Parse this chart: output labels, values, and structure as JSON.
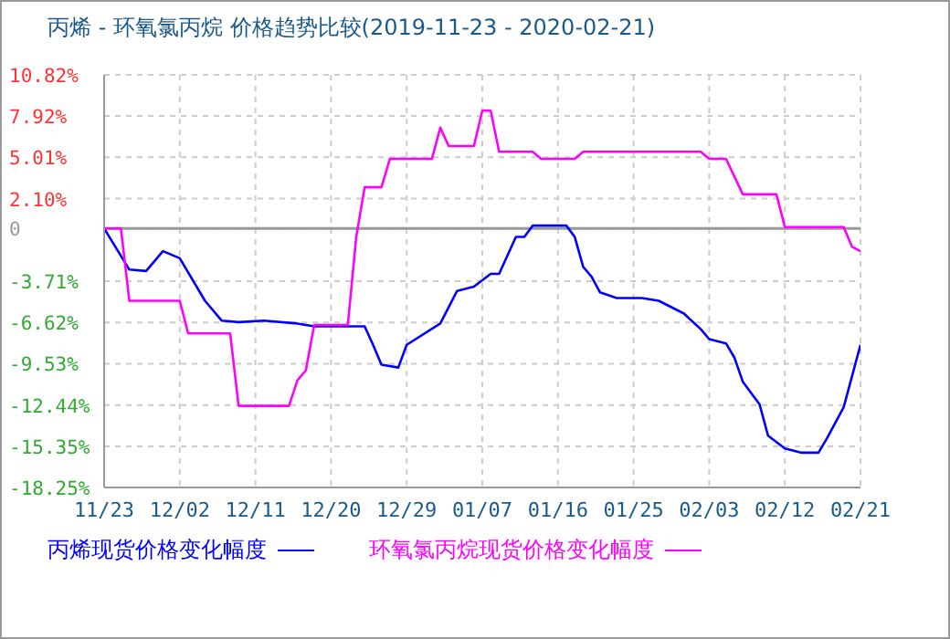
{
  "chart_data": {
    "type": "line",
    "title": "丙烯 - 环氧氯丙烷 价格趋势比较(2019-11-23 - 2020-02-21)",
    "series": [
      {
        "name": "丙烯现货价格变化幅度",
        "color": "#0000ff",
        "x": [
          "2019-11-23",
          "2019-11-26",
          "2019-11-28",
          "2019-11-30",
          "2019-12-02",
          "2019-12-05",
          "2019-12-07",
          "2019-12-09",
          "2019-12-12",
          "2019-12-16",
          "2019-12-18",
          "2019-12-24",
          "2019-12-25",
          "2019-12-26",
          "2019-12-28",
          "2019-12-29",
          "2020-01-02",
          "2020-01-04",
          "2020-01-06",
          "2020-01-08",
          "2020-01-09",
          "2020-01-11",
          "2020-01-12",
          "2020-01-13",
          "2020-01-17",
          "2020-01-18",
          "2020-01-19",
          "2020-01-20",
          "2020-01-21",
          "2020-01-23",
          "2020-01-26",
          "2020-01-28",
          "2020-01-31",
          "2020-02-02",
          "2020-02-03",
          "2020-02-05",
          "2020-02-06",
          "2020-02-07",
          "2020-02-09",
          "2020-02-10",
          "2020-02-12",
          "2020-02-14",
          "2020-02-16",
          "2020-02-17",
          "2020-02-19",
          "2020-02-21"
        ],
        "values": [
          0,
          -2.9,
          -3.0,
          -1.6,
          -2.1,
          -5.1,
          -6.5,
          -6.6,
          -6.5,
          -6.7,
          -6.9,
          -6.9,
          -8.2,
          -9.6,
          -9.8,
          -8.2,
          -6.7,
          -4.4,
          -4.1,
          -3.2,
          -3.2,
          -0.6,
          -0.6,
          0.2,
          0.2,
          -0.6,
          -2.7,
          -3.4,
          -4.5,
          -4.9,
          -4.9,
          -5.1,
          -6.0,
          -7.1,
          -7.8,
          -8.1,
          -9.1,
          -10.8,
          -12.4,
          -14.6,
          -15.5,
          -15.8,
          -15.8,
          -14.8,
          -12.6,
          -8.2
        ]
      },
      {
        "name": "环氧氯丙烷现货价格变化幅度",
        "color": "#ff00ff",
        "x": [
          "2019-11-23",
          "2019-11-25",
          "2019-11-26",
          "2019-12-02",
          "2019-12-03",
          "2019-12-08",
          "2019-12-09",
          "2019-12-15",
          "2019-12-16",
          "2019-12-17",
          "2019-12-18",
          "2019-12-22",
          "2019-12-23",
          "2019-12-24",
          "2019-12-26",
          "2019-12-27",
          "2020-01-01",
          "2020-01-02",
          "2020-01-03",
          "2020-01-06",
          "2020-01-07",
          "2020-01-08",
          "2020-01-09",
          "2020-01-13",
          "2020-01-14",
          "2020-01-18",
          "2020-01-19",
          "2020-02-02",
          "2020-02-03",
          "2020-02-05",
          "2020-02-07",
          "2020-02-11",
          "2020-02-12",
          "2020-02-19",
          "2020-02-20",
          "2020-02-21"
        ],
        "values": [
          0,
          0,
          -5.1,
          -5.1,
          -7.4,
          -7.4,
          -12.5,
          -12.5,
          -10.7,
          -10.0,
          -6.8,
          -6.8,
          -0.6,
          2.9,
          2.9,
          4.9,
          4.9,
          7.1,
          5.8,
          5.8,
          8.3,
          8.3,
          5.4,
          5.4,
          4.9,
          4.9,
          5.4,
          5.4,
          4.9,
          4.9,
          2.4,
          2.4,
          0.1,
          0.1,
          -1.3,
          -1.6
        ]
      }
    ],
    "xlim": [
      "2019-11-23",
      "2020-02-21"
    ],
    "xticks": [
      {
        "value": "2019-11-23",
        "label": "11/23"
      },
      {
        "value": "2019-12-02",
        "label": "12/02"
      },
      {
        "value": "2019-12-11",
        "label": "12/11"
      },
      {
        "value": "2019-12-20",
        "label": "12/20"
      },
      {
        "value": "2019-12-29",
        "label": "12/29"
      },
      {
        "value": "2020-01-07",
        "label": "01/07"
      },
      {
        "value": "2020-01-16",
        "label": "01/16"
      },
      {
        "value": "2020-01-25",
        "label": "01/25"
      },
      {
        "value": "2020-02-03",
        "label": "02/03"
      },
      {
        "value": "2020-02-12",
        "label": "02/12"
      },
      {
        "value": "2020-02-21",
        "label": "02/21"
      }
    ],
    "ylim": [
      -18.25,
      10.82
    ],
    "yticks": [
      {
        "value": 10.82,
        "label": "10.82%"
      },
      {
        "value": 7.92,
        "label": "7.92%"
      },
      {
        "value": 5.01,
        "label": "5.01%"
      },
      {
        "value": 2.1,
        "label": "2.10%"
      },
      0,
      {
        "value": -3.71,
        "label": "-3.71%"
      },
      {
        "value": -6.62,
        "label": "-6.62%"
      },
      {
        "value": -9.53,
        "label": "-9.53%"
      },
      {
        "value": -12.44,
        "label": "-12.44%"
      },
      {
        "value": -15.35,
        "label": "-15.35%"
      },
      {
        "value": -18.25,
        "label": "-18.25%"
      }
    ],
    "ref_lines": [
      {
        "axis": "y",
        "value": 0,
        "color": "#999999"
      }
    ],
    "grid": true,
    "legend": "bottom",
    "marker": "none",
    "line_style": "solid"
  }
}
